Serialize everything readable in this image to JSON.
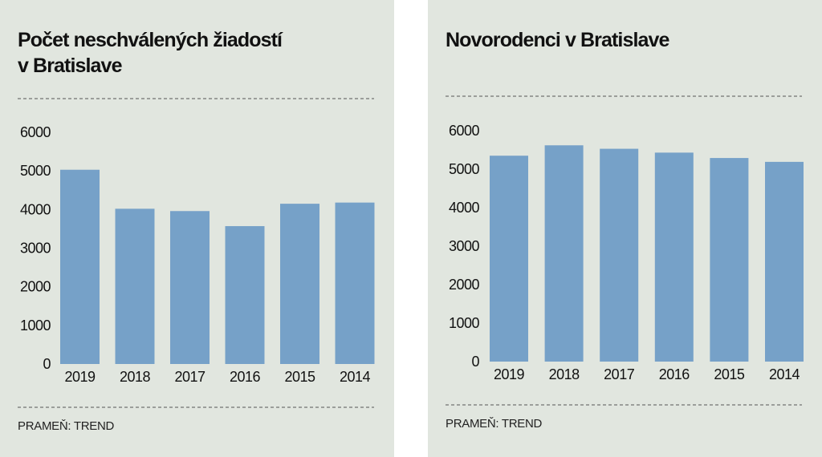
{
  "charts": [
    {
      "title_lines": [
        "Počet neschválených žiadostí",
        "v Bratislave"
      ],
      "source": "PRAMEŇ: TREND"
    },
    {
      "title_lines": [
        "Novorodenci v Bratislave"
      ],
      "source": "PRAMEŇ: TREND"
    }
  ],
  "colors": {
    "panel_background": "#e1e6df",
    "bar": "#76a1c8",
    "divider": "#555555",
    "text": "#111111"
  },
  "chart_data": [
    {
      "type": "bar",
      "title": "Počet neschválených žiadostí v Bratislave",
      "categories": [
        "2019",
        "2018",
        "2017",
        "2016",
        "2015",
        "2014"
      ],
      "values": [
        5030,
        4020,
        3960,
        3570,
        4150,
        4180
      ],
      "yticks": [
        "0",
        "1000",
        "2000",
        "3000",
        "4000",
        "5000",
        "6000"
      ],
      "ylim": [
        0,
        6000
      ],
      "grid": false,
      "source": "PRAMEŇ: TREND"
    },
    {
      "type": "bar",
      "title": "Novorodenci v Bratislave",
      "categories": [
        "2019",
        "2018",
        "2017",
        "2016",
        "2015",
        "2014"
      ],
      "values": [
        5350,
        5620,
        5530,
        5430,
        5290,
        5190
      ],
      "yticks": [
        "0",
        "1000",
        "2000",
        "3000",
        "4000",
        "5000",
        "6000"
      ],
      "ylim": [
        0,
        6000
      ],
      "grid": false,
      "source": "PRAMEŇ: TREND"
    }
  ]
}
